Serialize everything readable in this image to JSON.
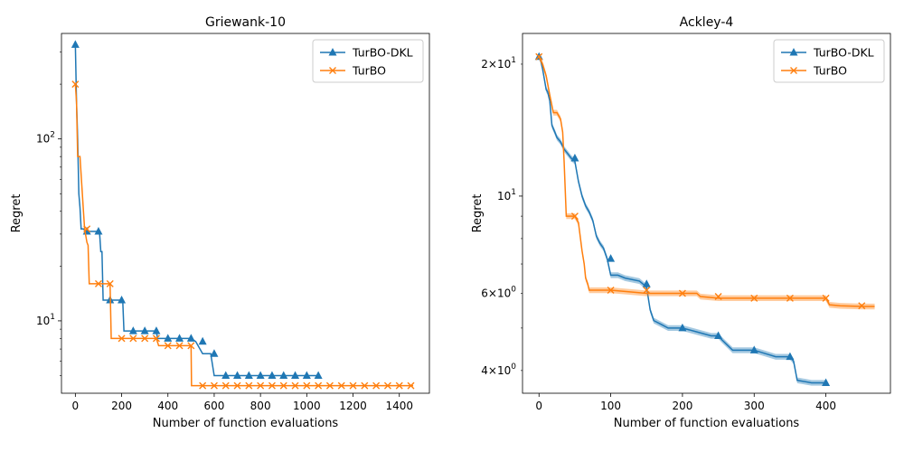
{
  "colors": {
    "turbo_dkl": "#1f77b4",
    "turbo": "#ff7f0e",
    "legend_border": "#cccccc"
  },
  "chart_data": [
    {
      "type": "line",
      "title": "Griewank-10",
      "xlabel": "Number of function evaluations",
      "ylabel": "Regret",
      "yscale": "log",
      "xlim": [
        -60,
        1530
      ],
      "ylim": [
        4.0,
        380
      ],
      "xticks": [
        0,
        200,
        400,
        600,
        800,
        1000,
        1200,
        1400
      ],
      "xtick_labels": [
        "0",
        "200",
        "400",
        "600",
        "800",
        "1000",
        "1200",
        "1400"
      ],
      "yticks_major": [
        10,
        100
      ],
      "ytick_labels": [
        "10^1",
        "10^2"
      ],
      "legend": {
        "position": "top-right",
        "entries": [
          "TurBO-DKL",
          "TurBO"
        ]
      },
      "series": [
        {
          "name": "TurBO-DKL",
          "color": "#1f77b4",
          "marker": "triangle",
          "x": [
            0,
            5,
            10,
            15,
            20,
            25,
            35,
            45,
            50,
            100,
            105,
            110,
            115,
            120,
            150,
            200,
            205,
            210,
            250,
            300,
            350,
            355,
            400,
            450,
            500,
            520,
            550,
            585,
            600,
            650,
            700,
            750,
            800,
            850,
            900,
            950,
            1000,
            1050
          ],
          "y": [
            330,
            160,
            100,
            50,
            42,
            32,
            32,
            31,
            31,
            31,
            30,
            24,
            24,
            13,
            13,
            13,
            12.7,
            8.8,
            8.8,
            8.8,
            8.8,
            8.0,
            8.0,
            8.0,
            8.0,
            7.7,
            6.6,
            6.6,
            5.0,
            5.0,
            5.0,
            5.0,
            5.0,
            5.0,
            5.0,
            5.0,
            5.0,
            5.0
          ],
          "markers_x": [
            0,
            50,
            100,
            150,
            200,
            250,
            300,
            350,
            400,
            450,
            500,
            550,
            600,
            650,
            700,
            750,
            800,
            850,
            900,
            950,
            1000,
            1050
          ]
        },
        {
          "name": "TurBO",
          "color": "#ff7f0e",
          "marker": "x",
          "x": [
            0,
            5,
            10,
            15,
            20,
            35,
            40,
            50,
            55,
            60,
            100,
            150,
            155,
            200,
            250,
            300,
            350,
            360,
            400,
            450,
            500,
            502,
            550,
            1460
          ],
          "y": [
            200,
            160,
            80,
            80,
            80,
            40,
            32,
            27,
            26,
            16,
            16,
            16,
            8.0,
            8.0,
            8.0,
            8.0,
            8.0,
            7.3,
            7.3,
            7.3,
            7.3,
            4.4,
            4.4,
            4.4
          ],
          "markers_x": [
            0,
            50,
            100,
            150,
            200,
            250,
            300,
            350,
            400,
            450,
            500,
            550,
            600,
            650,
            700,
            750,
            800,
            850,
            900,
            950,
            1000,
            1050,
            1100,
            1150,
            1200,
            1250,
            1300,
            1350,
            1400,
            1450
          ]
        }
      ]
    },
    {
      "type": "line",
      "title": "Ackley-4",
      "xlabel": "Number of function evaluations",
      "ylabel": "Regret",
      "yscale": "log",
      "xlim": [
        -23,
        490
      ],
      "ylim": [
        3.55,
        23.5
      ],
      "xticks": [
        0,
        100,
        200,
        300,
        400
      ],
      "xtick_labels": [
        "0",
        "100",
        "200",
        "300",
        "400"
      ],
      "yticks_major": [
        10
      ],
      "ytick_labels": [
        "10^1"
      ],
      "yticks_minor": [
        4,
        6,
        20
      ],
      "ytick_minor_labels": [
        "4×10^0",
        "6×10^0",
        "2×10^1"
      ],
      "legend": {
        "position": "top-right",
        "entries": [
          "TurBO-DKL",
          "TurBO"
        ]
      },
      "series": [
        {
          "name": "TurBO-DKL",
          "color": "#1f77b4",
          "marker": "triangle",
          "band_halfwidth_ratio": 0.015,
          "x": [
            0,
            2,
            5,
            10,
            12,
            15,
            18,
            22,
            25,
            30,
            35,
            40,
            45,
            50,
            55,
            60,
            62,
            65,
            70,
            75,
            80,
            85,
            90,
            95,
            100,
            110,
            120,
            140,
            145,
            150,
            155,
            160,
            170,
            180,
            200,
            220,
            240,
            250,
            255,
            270,
            300,
            310,
            330,
            350,
            355,
            360,
            380,
            400
          ],
          "y": [
            20.8,
            20.5,
            19.5,
            17.5,
            17.3,
            16.5,
            14.5,
            14.0,
            13.6,
            13.3,
            12.8,
            12.5,
            12.2,
            12.0,
            10.8,
            10.0,
            9.8,
            9.5,
            9.2,
            8.8,
            8.1,
            7.8,
            7.6,
            7.2,
            6.6,
            6.6,
            6.5,
            6.4,
            6.3,
            6.2,
            5.5,
            5.2,
            5.1,
            5.0,
            5.0,
            4.9,
            4.8,
            4.8,
            4.7,
            4.45,
            4.45,
            4.4,
            4.3,
            4.3,
            4.2,
            3.8,
            3.75,
            3.75
          ],
          "markers_x": [
            0,
            50,
            100,
            150,
            200,
            250,
            300,
            350,
            400
          ]
        },
        {
          "name": "TurBO",
          "color": "#ff7f0e",
          "marker": "x",
          "band_halfwidth_ratio": 0.015,
          "x": [
            0,
            5,
            10,
            15,
            20,
            25,
            30,
            33,
            35,
            38,
            40,
            45,
            50,
            55,
            60,
            63,
            65,
            68,
            70,
            72,
            75,
            100,
            150,
            200,
            220,
            225,
            250,
            300,
            350,
            400,
            405,
            420,
            450,
            468
          ],
          "y": [
            20.8,
            20.0,
            18.8,
            17.0,
            15.5,
            15.5,
            15.0,
            14.0,
            12.0,
            9.0,
            9.0,
            9.0,
            9.0,
            8.7,
            7.5,
            7.0,
            6.5,
            6.3,
            6.1,
            6.1,
            6.1,
            6.1,
            6.0,
            6.0,
            6.0,
            5.9,
            5.85,
            5.85,
            5.85,
            5.85,
            5.65,
            5.62,
            5.6,
            5.6
          ],
          "markers_x": [
            0,
            50,
            100,
            150,
            200,
            250,
            300,
            350,
            400,
            450
          ]
        }
      ]
    }
  ]
}
